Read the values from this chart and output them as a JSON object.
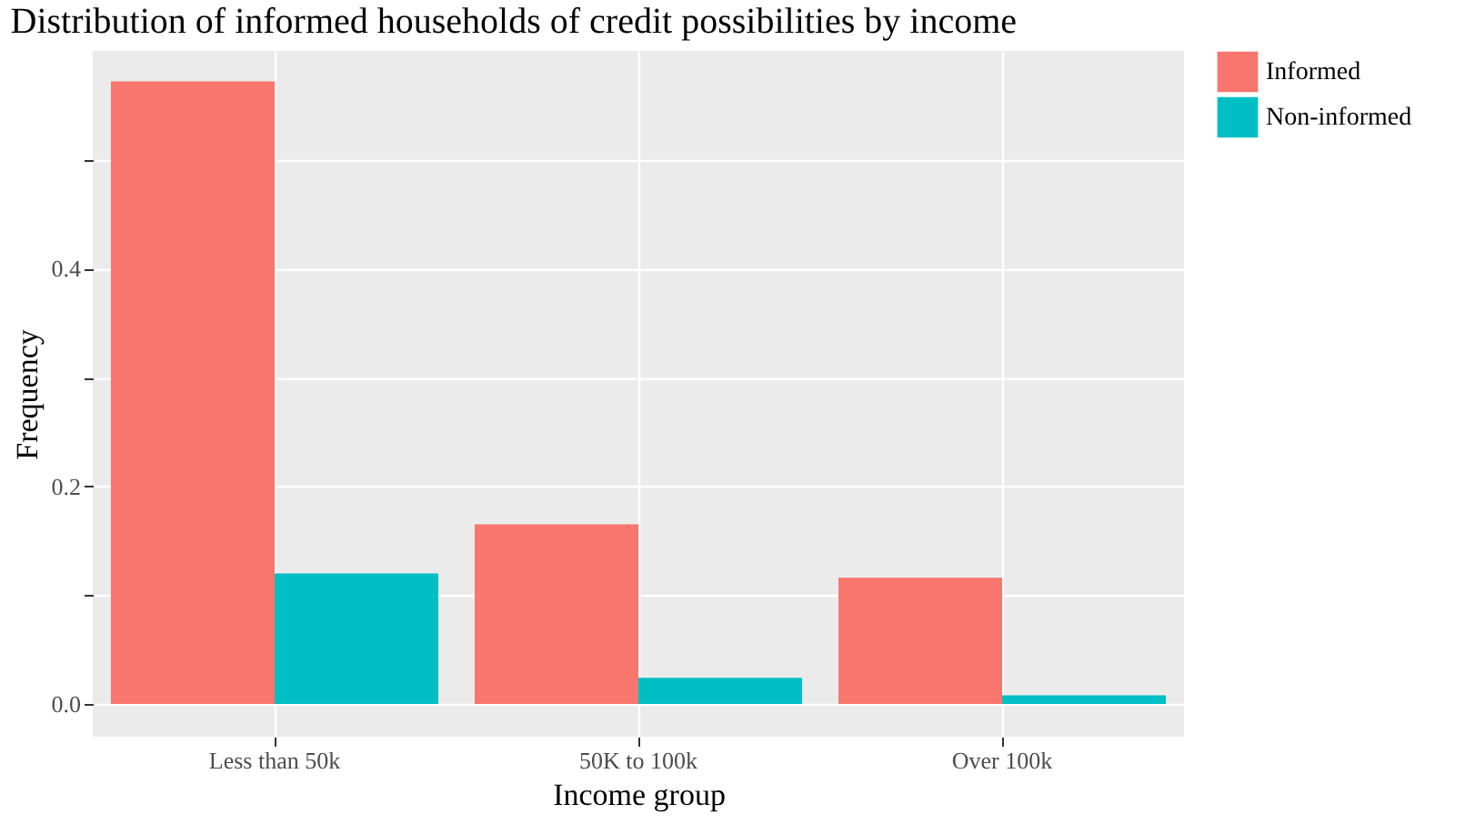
{
  "chart_data": {
    "type": "bar",
    "title": "Distribution of informed households of credit possibilities by income",
    "xlabel": "Income group",
    "ylabel": "Frequency",
    "categories": [
      "Less than 50k",
      "50K to 100k",
      "Over 100k"
    ],
    "series": [
      {
        "name": "Informed",
        "color": "#f8766d",
        "values": [
          0.572,
          0.165,
          0.116
        ]
      },
      {
        "name": "Non-informed",
        "color": "#00bfc4",
        "values": [
          0.12,
          0.024,
          0.008
        ]
      }
    ],
    "ylim": [
      -0.03,
      0.6
    ],
    "yticks": [
      {
        "value": 0.0,
        "label": "0.0"
      },
      {
        "value": 0.1,
        "label": null
      },
      {
        "value": 0.2,
        "label": "0.2"
      },
      {
        "value": 0.3,
        "label": null
      },
      {
        "value": 0.4,
        "label": "0.4"
      },
      {
        "value": 0.5,
        "label": null
      }
    ],
    "grid": true,
    "legend": "right"
  }
}
